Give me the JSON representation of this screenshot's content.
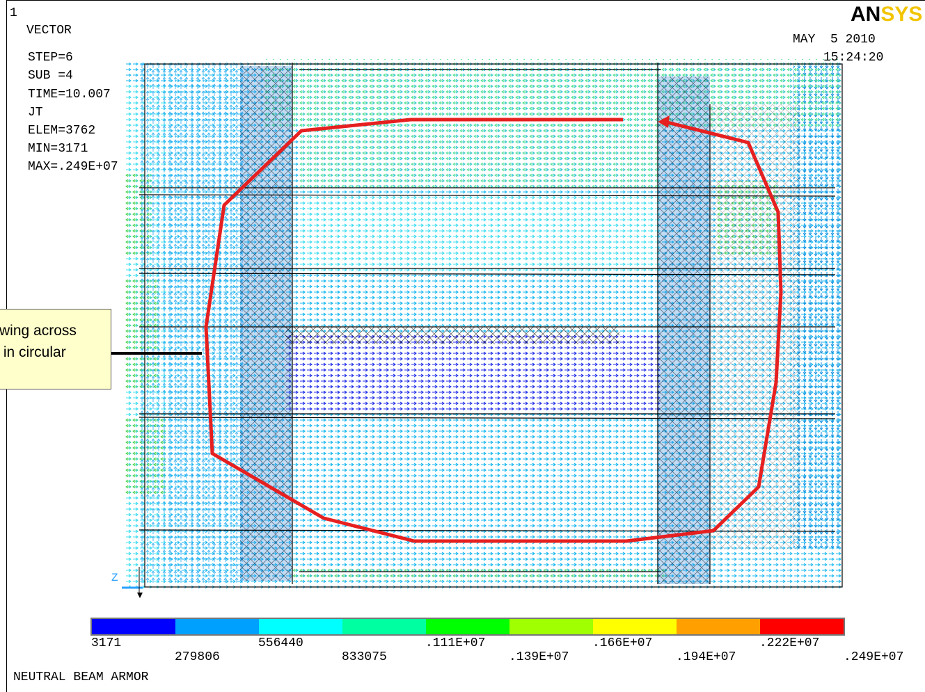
{
  "header": {
    "window_number": "1",
    "plot_type": "VECTOR",
    "step": "STEP=6",
    "sub": "SUB =4",
    "time": "TIME=10.007",
    "item": "JT",
    "elem": "ELEM=3762",
    "min": "MIN=3171",
    "max": "MAX=.249E+07",
    "date": "MAY  5 2010",
    "clock": "15:24:20"
  },
  "logo": {
    "part1": "AN",
    "part2": "SYS"
  },
  "callout": {
    "text": "wing across\n in circular"
  },
  "axis_triad": {
    "label": "Z"
  },
  "legend": {
    "colors": [
      "#0000ff",
      "#00a0ff",
      "#00ffff",
      "#00ffa0",
      "#00ff00",
      "#a0ff00",
      "#ffff00",
      "#ffa000",
      "#ff0000"
    ],
    "labels": [
      "3171",
      "279806",
      "556440",
      "833075",
      ".111E+07",
      ".139E+07",
      ".166E+07",
      ".194E+07",
      ".222E+07",
      ".249E+07"
    ]
  },
  "footer": {
    "title": "NEUTRAL BEAM ARMOR"
  }
}
